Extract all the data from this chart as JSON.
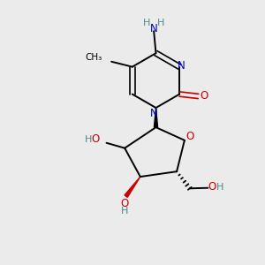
{
  "bg_color": "#ebebeb",
  "bond_color": "#000000",
  "N_color": "#0000cc",
  "O_color": "#cc0000",
  "H_color": "#4a8a8a",
  "figsize": [
    3.0,
    3.0
  ],
  "dpi": 100,
  "xlim": [
    0,
    10
  ],
  "ylim": [
    0,
    10
  ]
}
